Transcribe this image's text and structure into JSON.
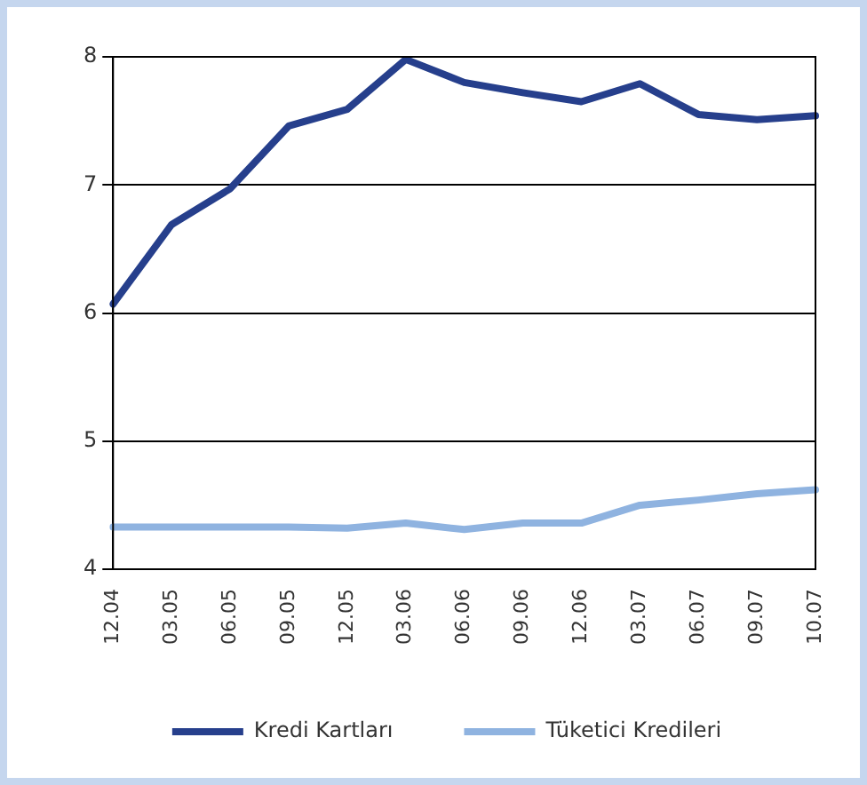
{
  "chart_data": {
    "type": "line",
    "categories": [
      "12.04",
      "03.05",
      "06.05",
      "09.05",
      "12.05",
      "03.06",
      "06.06",
      "09.06",
      "12.06",
      "03.07",
      "06.07",
      "09.07",
      "10.07"
    ],
    "series": [
      {
        "name": "Kredi Kartları",
        "color": "#263f8c",
        "values": [
          6.07,
          6.69,
          6.97,
          7.46,
          7.59,
          7.98,
          7.8,
          7.72,
          7.65,
          7.79,
          7.55,
          7.51,
          7.54
        ]
      },
      {
        "name": "Tüketici Kredileri",
        "color": "#8fb3e0",
        "values": [
          4.33,
          4.33,
          4.33,
          4.33,
          4.32,
          4.36,
          4.31,
          4.36,
          4.36,
          4.5,
          4.54,
          4.59,
          4.62
        ]
      }
    ],
    "ylim": [
      4,
      8
    ],
    "yticks": [
      4,
      5,
      6,
      7,
      8
    ],
    "grid": "y",
    "legend": "bottom",
    "marker": "none",
    "line_style": "solid"
  }
}
